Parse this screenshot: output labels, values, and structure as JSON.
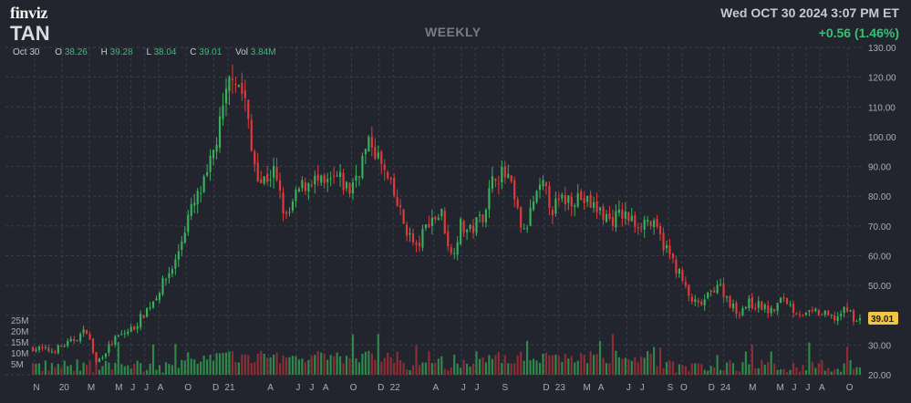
{
  "header": {
    "logo": "finviz",
    "ticker": "TAN",
    "period": "WEEKLY",
    "timestamp": "Wed OCT 30 2024 3:07 PM ET",
    "change": "+0.56 (1.46%)"
  },
  "ohlc": {
    "date": "Oct 30",
    "open_label": "O",
    "open": "38.26",
    "high_label": "H",
    "high": "39.28",
    "low_label": "L",
    "low": "38.04",
    "close_label": "C",
    "close": "39.01",
    "vol_label": "Vol",
    "vol": "3.84M"
  },
  "colors": {
    "background": "#22252e",
    "up": "#38b25a",
    "down": "#e23a3a",
    "up_volume": "#2f8a4a",
    "down_volume": "#8e2d33",
    "grid": "#3a3e4a",
    "price_badge": "#f4c542"
  },
  "chart_data": {
    "type": "candlestick",
    "interval": "weekly",
    "y_axis": {
      "range": [
        20,
        130
      ],
      "ticks": [
        20,
        30,
        40,
        50,
        60,
        70,
        80,
        90,
        100,
        110,
        120,
        130
      ],
      "labels": [
        "20.00",
        "30.00",
        "40.00",
        "50.00",
        "60.00",
        "70.00",
        "80.00",
        "90.00",
        "100.00",
        "110.00",
        "120.00",
        "130.00"
      ]
    },
    "volume_axis": {
      "labels": [
        "25M",
        "20M",
        "15M",
        "10M",
        "5M"
      ],
      "values": [
        25,
        20,
        15,
        10,
        5
      ]
    },
    "x_axis": {
      "labels": [
        "N",
        "20",
        "M",
        "M",
        "J",
        "J",
        "A",
        "O",
        "D",
        "21",
        "A",
        "J",
        "J",
        "A",
        "O",
        "D",
        "22",
        "A",
        "J",
        "J",
        "S",
        "D",
        "23",
        "M",
        "A",
        "J",
        "J",
        "S",
        "O",
        "D",
        "24",
        "M",
        "M",
        "J",
        "J",
        "A",
        "O"
      ],
      "dates": [
        "2019-11",
        "2020-01",
        "2020-03",
        "2020-05",
        "2020-06",
        "2020-07",
        "2020-08",
        "2020-10",
        "2020-12",
        "2021-01",
        "2021-04",
        "2021-06",
        "2021-07",
        "2021-08",
        "2021-10",
        "2021-12",
        "2022-01",
        "2022-04",
        "2022-06",
        "2022-07",
        "2022-09",
        "2022-12",
        "2023-01",
        "2023-03",
        "2023-04",
        "2023-06",
        "2023-07",
        "2023-09",
        "2023-10",
        "2023-12",
        "2024-01",
        "2024-03",
        "2024-05",
        "2024-06",
        "2024-07",
        "2024-08",
        "2024-10"
      ]
    },
    "last_price": "39.01",
    "close_path": [
      [
        "2019-10-28",
        29
      ],
      [
        "2019-12-09",
        28
      ],
      [
        "2020-01-20",
        31
      ],
      [
        "2020-02-24",
        35
      ],
      [
        "2020-03-16",
        24
      ],
      [
        "2020-04-27",
        32
      ],
      [
        "2020-06-08",
        36
      ],
      [
        "2020-07-20",
        45
      ],
      [
        "2020-09-07",
        58
      ],
      [
        "2020-10-05",
        73
      ],
      [
        "2020-11-16",
        86
      ],
      [
        "2020-12-21",
        108
      ],
      [
        "2021-01-11",
        123
      ],
      [
        "2021-02-08",
        112
      ],
      [
        "2021-02-22",
        95
      ],
      [
        "2021-03-15",
        85
      ],
      [
        "2021-04-12",
        88
      ],
      [
        "2021-05-10",
        72
      ],
      [
        "2021-06-07",
        82
      ],
      [
        "2021-07-05",
        86
      ],
      [
        "2021-08-02",
        83
      ],
      [
        "2021-08-30",
        86
      ],
      [
        "2021-09-27",
        82
      ],
      [
        "2021-11-01",
        95
      ],
      [
        "2021-11-15",
        98
      ],
      [
        "2021-12-06",
        90
      ],
      [
        "2022-01-03",
        80
      ],
      [
        "2022-01-24",
        71
      ],
      [
        "2022-02-21",
        62
      ],
      [
        "2022-03-21",
        72
      ],
      [
        "2022-04-18",
        74
      ],
      [
        "2022-05-09",
        60
      ],
      [
        "2022-05-30",
        70
      ],
      [
        "2022-06-20",
        68
      ],
      [
        "2022-07-18",
        74
      ],
      [
        "2022-08-15",
        88
      ],
      [
        "2022-09-12",
        86
      ],
      [
        "2022-10-03",
        74
      ],
      [
        "2022-10-17",
        67
      ],
      [
        "2022-11-07",
        78
      ],
      [
        "2022-11-28",
        83
      ],
      [
        "2022-12-19",
        76
      ],
      [
        "2023-01-16",
        79
      ],
      [
        "2023-02-13",
        80
      ],
      [
        "2023-03-13",
        77
      ],
      [
        "2023-04-03",
        75
      ],
      [
        "2023-04-24",
        72
      ],
      [
        "2023-05-22",
        74
      ],
      [
        "2023-06-19",
        71
      ],
      [
        "2023-07-17",
        72
      ],
      [
        "2023-08-07",
        68
      ],
      [
        "2023-08-28",
        62
      ],
      [
        "2023-09-25",
        54
      ],
      [
        "2023-10-16",
        46
      ],
      [
        "2023-11-06",
        43
      ],
      [
        "2023-11-27",
        46
      ],
      [
        "2023-12-18",
        51
      ],
      [
        "2024-01-08",
        46
      ],
      [
        "2024-01-29",
        41
      ],
      [
        "2024-02-26",
        44
      ],
      [
        "2024-03-25",
        43
      ],
      [
        "2024-04-15",
        41
      ],
      [
        "2024-05-13",
        46
      ],
      [
        "2024-06-03",
        42
      ],
      [
        "2024-07-01",
        40
      ],
      [
        "2024-07-22",
        41
      ],
      [
        "2024-08-12",
        40
      ],
      [
        "2024-09-02",
        39
      ],
      [
        "2024-09-30",
        42
      ],
      [
        "2024-10-21",
        38
      ],
      [
        "2024-10-28",
        39.01
      ]
    ]
  }
}
